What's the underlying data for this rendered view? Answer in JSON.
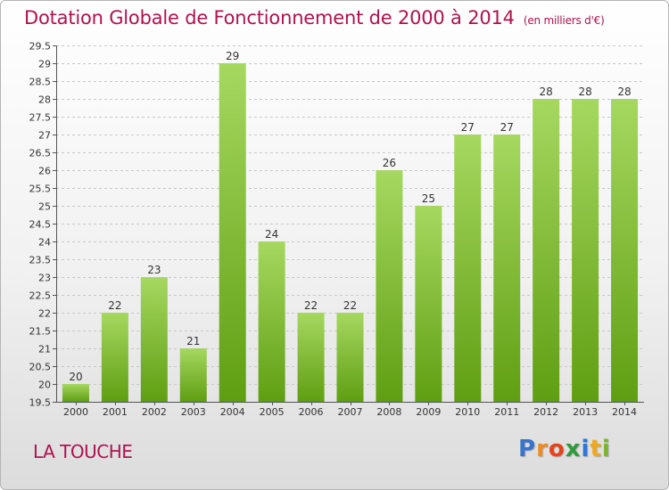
{
  "title": "Dotation Globale de Fonctionnement de 2000 à 2014",
  "unit_note": "(en milliers d'€)",
  "commune": "LA TOUCHE",
  "logo": {
    "letters": [
      "P",
      "r",
      "o",
      "x",
      "i",
      "t",
      "i"
    ],
    "colors": [
      "#3a73c8",
      "#f08a1c",
      "#e7421a",
      "#2f9a3a",
      "#2a79d2",
      "#f0a91c",
      "#7ab530"
    ]
  },
  "colors": {
    "title": "#b0124f",
    "bar_light": "#a6d860",
    "bar_dark": "#5f9e12"
  },
  "chart_data": {
    "type": "bar",
    "title": "Dotation Globale de Fonctionnement de 2000 à 2014",
    "subtitle": "(en milliers d'€)",
    "xlabel": "",
    "ylabel": "",
    "categories": [
      "2000",
      "2001",
      "2002",
      "2003",
      "2004",
      "2005",
      "2006",
      "2007",
      "2008",
      "2009",
      "2010",
      "2011",
      "2012",
      "2013",
      "2014"
    ],
    "values": [
      20,
      22,
      23,
      21,
      29,
      24,
      22,
      22,
      26,
      25,
      27,
      27,
      28,
      28,
      28
    ],
    "ylim": [
      19.5,
      29.5
    ],
    "yticks": [
      "19.5",
      "20",
      "20.5",
      "21",
      "21.5",
      "22",
      "22.5",
      "23",
      "23.5",
      "24",
      "24.5",
      "25",
      "25.5",
      "26",
      "26.5",
      "27",
      "27.5",
      "28",
      "28.5",
      "29",
      "29.5"
    ],
    "grid": true,
    "legend": "none"
  }
}
